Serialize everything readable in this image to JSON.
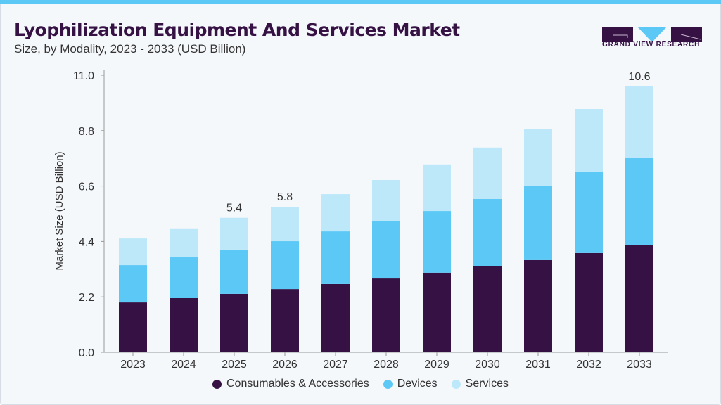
{
  "header": {
    "title": "Lyophilization Equipment And Services Market",
    "subtitle": "Size, by Modality, 2023 - 2033 (USD Billion)"
  },
  "logo": {
    "text": "GRAND VIEW RESEARCH"
  },
  "colors": {
    "consumables": "#351144",
    "devices": "#5bc8f5",
    "services": "#bde8f9",
    "accent": "#5bc8f5"
  },
  "chart_data": {
    "type": "bar",
    "stacked": true,
    "title": "Lyophilization Equipment And Services Market",
    "subtitle": "Size, by Modality, 2023 - 2033 (USD Billion)",
    "xlabel": "",
    "ylabel": "Market Size (USD Billion)",
    "ylim": [
      0,
      11
    ],
    "yticks": [
      "0.0",
      "2.2",
      "4.4",
      "6.6",
      "8.8",
      "11.0"
    ],
    "categories": [
      "2023",
      "2024",
      "2025",
      "2026",
      "2027",
      "2028",
      "2029",
      "2030",
      "2031",
      "2032",
      "2033"
    ],
    "series": [
      {
        "name": "Consumables & Accessories",
        "color": "#351144",
        "values": [
          1.98,
          2.15,
          2.32,
          2.51,
          2.71,
          2.93,
          3.16,
          3.41,
          3.66,
          3.94,
          4.25
        ]
      },
      {
        "name": "Devices",
        "color": "#5bc8f5",
        "values": [
          1.48,
          1.62,
          1.76,
          1.9,
          2.09,
          2.27,
          2.45,
          2.68,
          2.93,
          3.21,
          3.46
        ]
      },
      {
        "name": "Services",
        "color": "#bde8f9",
        "values": [
          1.06,
          1.15,
          1.26,
          1.37,
          1.48,
          1.64,
          1.85,
          2.04,
          2.26,
          2.51,
          2.85
        ]
      }
    ],
    "annotations": [
      {
        "category": "2025",
        "label": "5.4"
      },
      {
        "category": "2026",
        "label": "5.8"
      },
      {
        "category": "2033",
        "label": "10.6"
      }
    ],
    "grid": false,
    "legend": "bottom"
  }
}
